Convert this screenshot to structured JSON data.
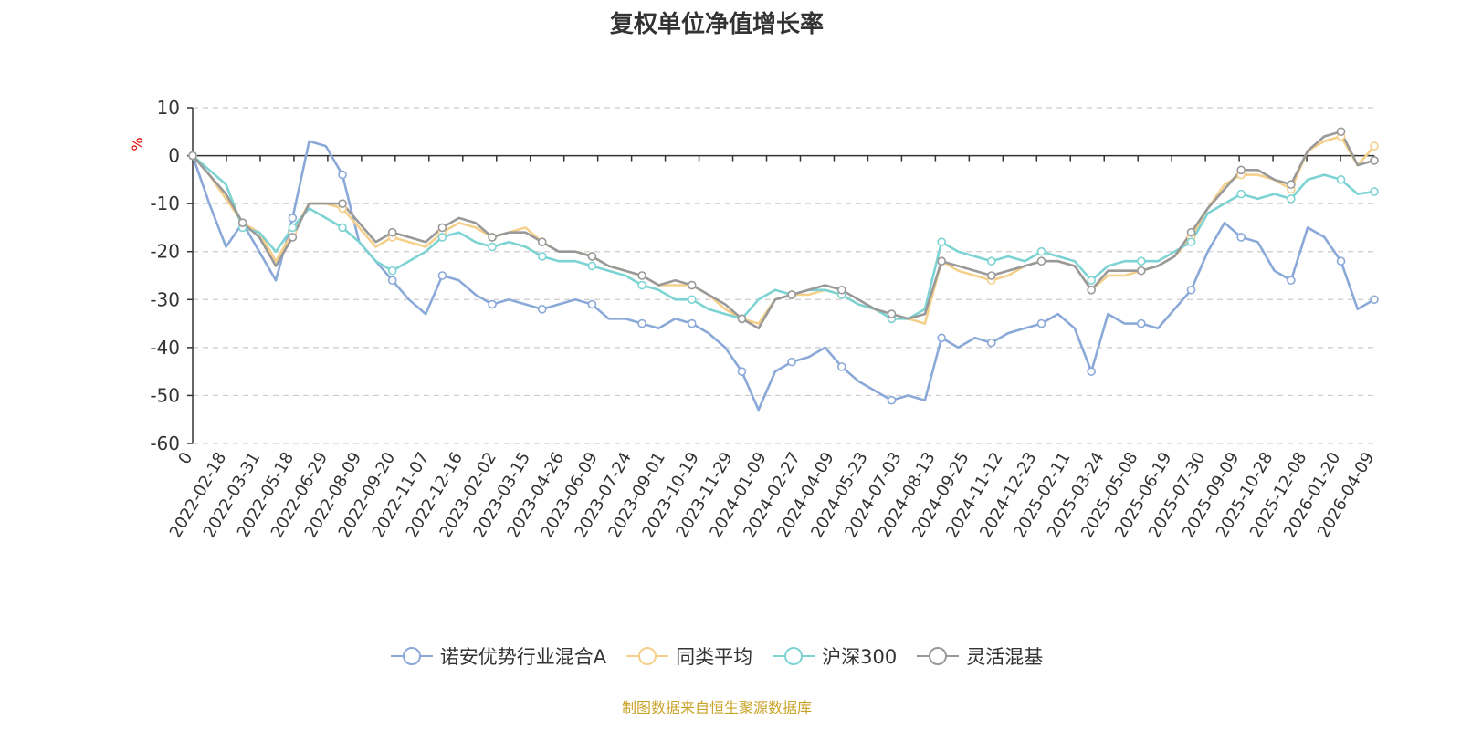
{
  "chart_data": {
    "type": "line",
    "title": "复权单位净值增长率",
    "ylabel": "%",
    "ylim": [
      -60,
      10
    ],
    "yticks": [
      10,
      0,
      -10,
      -20,
      -30,
      -40,
      -50,
      -60
    ],
    "grid": true,
    "legend_position": "bottom",
    "x_tick_labels": [
      "0",
      "2022-02-18",
      "2022-03-31",
      "2022-05-18",
      "2022-06-29",
      "2022-08-09",
      "2022-09-20",
      "2022-11-07",
      "2022-12-16",
      "2023-02-02",
      "2023-03-15",
      "2023-04-26",
      "2023-06-09",
      "2023-07-24",
      "2023-09-01",
      "2023-10-19",
      "2023-11-29",
      "2024-01-09",
      "2024-02-27",
      "2024-04-09",
      "2024-05-23",
      "2024-07-03",
      "2024-08-13",
      "2024-09-25",
      "2024-11-12",
      "2024-12-23",
      "2025-02-11",
      "2025-03-24",
      "2025-05-08",
      "2025-06-19",
      "2025-07-30",
      "2025-09-09",
      "2025-10-28",
      "2025-12-08",
      "2026-01-20",
      "2026-04-09"
    ],
    "x": [
      "0",
      "2022-02-18",
      "2022-03-31",
      "2022-04-28",
      "2022-05-18",
      "2022-06-08",
      "2022-06-29",
      "2022-07-20",
      "2022-08-09",
      "2022-08-30",
      "2022-09-20",
      "2022-10-14",
      "2022-11-07",
      "2022-11-28",
      "2022-12-16",
      "2023-01-09",
      "2023-02-02",
      "2023-02-22",
      "2023-03-15",
      "2023-04-04",
      "2023-04-26",
      "2023-05-18",
      "2023-06-09",
      "2023-07-03",
      "2023-07-24",
      "2023-08-11",
      "2023-09-01",
      "2023-09-22",
      "2023-10-19",
      "2023-11-08",
      "2023-11-29",
      "2023-12-19",
      "2024-01-09",
      "2024-01-29",
      "2024-02-27",
      "2024-03-18",
      "2024-04-09",
      "2024-04-30",
      "2024-05-23",
      "2024-06-13",
      "2024-07-03",
      "2024-07-23",
      "2024-08-13",
      "2024-09-02",
      "2024-09-25",
      "2024-10-08",
      "2024-11-12",
      "2024-12-03",
      "2024-12-23",
      "2025-01-15",
      "2025-02-11",
      "2025-03-03",
      "2025-03-24",
      "2025-04-08",
      "2025-04-14",
      "2025-05-08",
      "2025-05-28",
      "2025-06-19",
      "2025-07-09",
      "2025-07-30",
      "2025-08-19",
      "2025-09-09",
      "2025-09-30",
      "2025-10-28",
      "2025-11-17",
      "2025-12-08",
      "2025-12-29",
      "2026-01-20",
      "2026-02-10",
      "2026-03-05",
      "2026-03-20",
      "2026-04-09"
    ],
    "series": [
      {
        "name": "诺安优势行业混合A",
        "color": "#8aa9d8",
        "values": [
          0,
          -10,
          -19,
          -14,
          -20,
          -26,
          -13,
          3,
          2,
          -4,
          -18,
          -22,
          -26,
          -30,
          -33,
          -25,
          -26,
          -29,
          -31,
          -30,
          -31,
          -32,
          -31,
          -30,
          -31,
          -34,
          -34,
          -35,
          -36,
          -34,
          -35,
          -37,
          -40,
          -45,
          -53,
          -45,
          -43,
          -42,
          -40,
          -44,
          -47,
          -49,
          -51,
          -50,
          -51,
          -38,
          -40,
          -38,
          -39,
          -37,
          -36,
          -35,
          -33,
          -36,
          -45,
          -33,
          -35,
          -35,
          -36,
          -32,
          -28,
          -20,
          -14,
          -17,
          -18,
          -24,
          -26,
          -15,
          -17,
          -22,
          -32,
          -30
        ]
      },
      {
        "name": "同类平均",
        "color": "#f5d08a",
        "values": [
          0,
          -4,
          -9,
          -14,
          -16,
          -22,
          -16,
          -10,
          -10,
          -11,
          -15,
          -19,
          -17,
          -18,
          -19,
          -16,
          -14,
          -15,
          -17,
          -16,
          -15,
          -18,
          -20,
          -20,
          -21,
          -23,
          -24,
          -25,
          -27,
          -27,
          -27,
          -29,
          -32,
          -34,
          -35,
          -30,
          -29,
          -29,
          -28,
          -29,
          -31,
          -32,
          -34,
          -34,
          -35,
          -22,
          -24,
          -25,
          -26,
          -25,
          -23,
          -22,
          -22,
          -23,
          -28,
          -25,
          -25,
          -24,
          -23,
          -21,
          -17,
          -11,
          -6,
          -4,
          -4,
          -5,
          -7,
          1,
          3,
          4,
          -2,
          2
        ]
      },
      {
        "name": "沪深300",
        "color": "#7dd3d3",
        "values": [
          0,
          -3,
          -6,
          -15,
          -16,
          -20,
          -15,
          -11,
          -13,
          -15,
          -18,
          -22,
          -24,
          -22,
          -20,
          -17,
          -16,
          -18,
          -19,
          -18,
          -19,
          -21,
          -22,
          -22,
          -23,
          -24,
          -25,
          -27,
          -28,
          -30,
          -30,
          -32,
          -33,
          -34,
          -30,
          -28,
          -29,
          -28,
          -28,
          -29,
          -31,
          -32,
          -34,
          -34,
          -32,
          -18,
          -20,
          -21,
          -22,
          -21,
          -22,
          -20,
          -21,
          -22,
          -26,
          -23,
          -22,
          -22,
          -22,
          -20,
          -18,
          -12,
          -10,
          -8,
          -9,
          -8,
          -9,
          -5,
          -4,
          -5,
          -8,
          -7.5
        ]
      },
      {
        "name": "灵活混基",
        "color": "#999999",
        "values": [
          0,
          -4,
          -8,
          -14,
          -17,
          -23,
          -17,
          -10,
          -10,
          -10,
          -14,
          -18,
          -16,
          -17,
          -18,
          -15,
          -13,
          -14,
          -17,
          -16,
          -16,
          -18,
          -20,
          -20,
          -21,
          -23,
          -24,
          -25,
          -27,
          -26,
          -27,
          -29,
          -31,
          -34,
          -36,
          -30,
          -29,
          -28,
          -27,
          -28,
          -30,
          -32,
          -33,
          -34,
          -33,
          -22,
          -23,
          -24,
          -25,
          -24,
          -23,
          -22,
          -22,
          -23,
          -28,
          -24,
          -24,
          -24,
          -23,
          -21,
          -16,
          -11,
          -7,
          -3,
          -3,
          -5,
          -6,
          1,
          4,
          5,
          -2,
          -1
        ]
      }
    ]
  },
  "legend": {
    "items": [
      {
        "label": "诺安优势行业混合A",
        "color": "#8aa9d8"
      },
      {
        "label": "同类平均",
        "color": "#f5d08a"
      },
      {
        "label": "沪深300",
        "color": "#7dd3d3"
      },
      {
        "label": "灵活混基",
        "color": "#999999"
      }
    ]
  },
  "footer": {
    "source": "制图数据来自恒生聚源数据库"
  }
}
